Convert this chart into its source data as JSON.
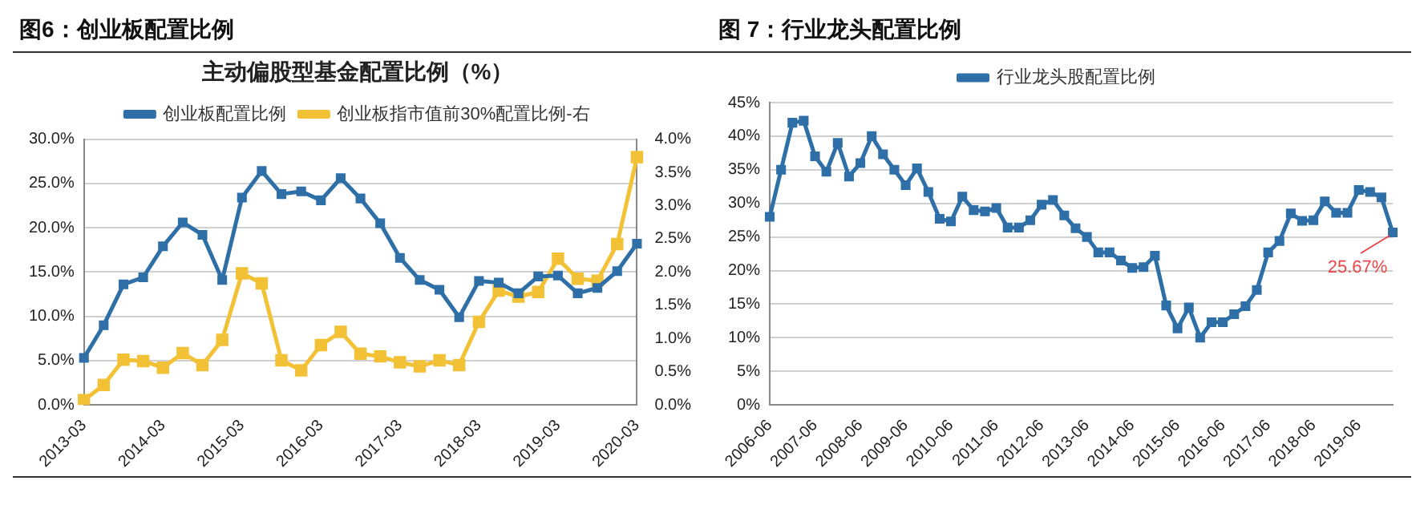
{
  "chart_data": [
    {
      "type": "line",
      "title": "图6：创业板配置比例",
      "subtitle": "主动偏股型基金配置比例（%）",
      "categories": [
        "2013-03",
        null,
        null,
        null,
        "2014-03",
        null,
        null,
        null,
        "2015-03",
        null,
        null,
        null,
        "2016-03",
        null,
        null,
        null,
        "2017-03",
        null,
        null,
        null,
        "2018-03",
        null,
        null,
        null,
        "2019-03",
        null,
        null,
        null,
        "2020-03"
      ],
      "series": [
        {
          "name": "创业板配置比例",
          "color": "#2e6fa8",
          "values": [
            5.3,
            9.0,
            13.6,
            14.4,
            17.9,
            20.6,
            19.2,
            14.1,
            23.4,
            26.4,
            23.8,
            24.1,
            23.1,
            25.6,
            23.3,
            20.5,
            16.6,
            14.1,
            13.0,
            9.9,
            14.0,
            13.8,
            12.6,
            14.5,
            14.6,
            12.6,
            13.2,
            15.1,
            18.2
          ]
        },
        {
          "name": "创业板指市值前30%配置比例-右",
          "color": "#f3c136",
          "axis": "y2",
          "values": [
            0.07,
            0.3,
            0.68,
            0.66,
            0.56,
            0.78,
            0.6,
            0.98,
            1.98,
            1.83,
            0.67,
            0.52,
            0.9,
            1.1,
            0.77,
            0.73,
            0.64,
            0.58,
            0.67,
            0.6,
            1.25,
            1.72,
            1.63,
            1.7,
            2.2,
            1.9,
            1.87,
            2.42,
            3.73
          ]
        }
      ],
      "ylim": [
        0,
        30
      ],
      "yticks": [
        {
          "value": 0,
          "label": "0.0%"
        },
        {
          "value": 5,
          "label": "5.0%"
        },
        {
          "value": 10,
          "label": "10.0%"
        },
        {
          "value": 15,
          "label": "15.0%"
        },
        {
          "value": 20,
          "label": "20.0%"
        },
        {
          "value": 25,
          "label": "25.0%"
        },
        {
          "value": 30,
          "label": "30.0%"
        }
      ],
      "y2lim": [
        0,
        4
      ],
      "y2ticks": [
        {
          "value": 0,
          "label": "0.0%"
        },
        {
          "value": 0.5,
          "label": "0.5%"
        },
        {
          "value": 1,
          "label": "1.0%"
        },
        {
          "value": 1.5,
          "label": "1.5%"
        },
        {
          "value": 2,
          "label": "2.0%"
        },
        {
          "value": 2.5,
          "label": "2.5%"
        },
        {
          "value": 3,
          "label": "3.0%"
        },
        {
          "value": 3.5,
          "label": "3.5%"
        },
        {
          "value": 4,
          "label": "4.0%"
        }
      ],
      "grid": "y",
      "legend": "top",
      "marker": "square",
      "line_style": "solid"
    },
    {
      "type": "line",
      "title": "图 7：行业龙头配置比例",
      "categories": [
        "2006-06",
        null,
        null,
        null,
        "2007-06",
        null,
        null,
        null,
        "2008-06",
        null,
        null,
        null,
        "2009-06",
        null,
        null,
        null,
        "2010-06",
        null,
        null,
        null,
        "2011-06",
        null,
        null,
        null,
        "2012-06",
        null,
        null,
        null,
        "2013-06",
        null,
        null,
        null,
        "2014-06",
        null,
        null,
        null,
        "2015-06",
        null,
        null,
        null,
        "2016-06",
        null,
        null,
        null,
        "2017-06",
        null,
        null,
        null,
        "2018-06",
        null,
        null,
        null,
        "2019-06",
        null,
        null,
        null
      ],
      "series": [
        {
          "name": "行业龙头股配置比例",
          "color": "#2e6fa8",
          "values": [
            28,
            35,
            42,
            42.3,
            37,
            34.7,
            39,
            34,
            36,
            40,
            37.3,
            35,
            32.7,
            35.2,
            31.7,
            27.7,
            27.3,
            31,
            29,
            28.8,
            29.3,
            26.4,
            26.4,
            27.5,
            29.8,
            30.5,
            28.2,
            26.3,
            25,
            22.7,
            22.7,
            21.5,
            20.4,
            20.5,
            22.2,
            14.8,
            11.4,
            14.5,
            10,
            12.3,
            12.3,
            13.5,
            14.7,
            17.1,
            22.7,
            24.4,
            28.5,
            27.4,
            27.5,
            30.3,
            28.6,
            28.6,
            32,
            31.7,
            30.9,
            25.67
          ]
        }
      ],
      "ylim": [
        0,
        45
      ],
      "yticks": [
        {
          "value": 0,
          "label": "0%"
        },
        {
          "value": 5,
          "label": "5%"
        },
        {
          "value": 10,
          "label": "10%"
        },
        {
          "value": 15,
          "label": "15%"
        },
        {
          "value": 20,
          "label": "20%"
        },
        {
          "value": 25,
          "label": "25%"
        },
        {
          "value": 30,
          "label": "30%"
        },
        {
          "value": 35,
          "label": "35%"
        },
        {
          "value": 40,
          "label": "40%"
        },
        {
          "value": 45,
          "label": "45%"
        }
      ],
      "annotations": [
        "25.67%"
      ],
      "grid": "y",
      "legend": "top",
      "marker": "square",
      "line_style": "solid"
    }
  ]
}
